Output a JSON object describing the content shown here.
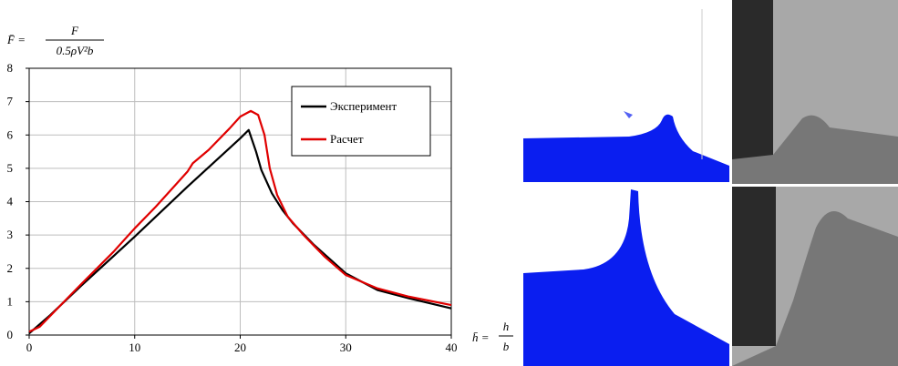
{
  "chart_data": {
    "type": "line",
    "ylabel_symbol": "F̄ =",
    "ylabel_numerator": "F",
    "ylabel_denominator": "0.5ρV²b",
    "xlabel_symbol": "h̄ =",
    "xlabel_numerator": "h",
    "xlabel_denominator": "b",
    "xlim": [
      0,
      40
    ],
    "xticks": [
      0,
      10,
      20,
      30,
      40
    ],
    "ylim": [
      0,
      8
    ],
    "yticks": [
      0,
      1,
      2,
      3,
      4,
      5,
      6,
      7,
      8
    ],
    "grid": true,
    "legend": "upper right",
    "series": [
      {
        "name": "Эксперимент",
        "color": "#000000",
        "x": [
          0,
          2,
          5,
          10,
          15,
          20,
          20.8,
          21.5,
          22,
          23,
          24,
          25,
          27,
          30,
          33,
          36,
          40
        ],
        "values": [
          0.05,
          0.6,
          1.5,
          2.95,
          4.45,
          5.9,
          6.15,
          5.5,
          4.95,
          4.25,
          3.75,
          3.35,
          2.7,
          1.85,
          1.35,
          1.1,
          0.8
        ]
      },
      {
        "name": "Расчет",
        "color": "#e00000",
        "x": [
          0,
          1,
          3,
          5,
          8,
          10,
          12,
          14,
          15,
          15.5,
          17,
          19,
          20,
          21,
          21.7,
          22.3,
          22.8,
          23.5,
          24.5,
          26,
          28,
          30,
          33,
          36,
          40
        ],
        "values": [
          0.1,
          0.25,
          0.9,
          1.55,
          2.5,
          3.2,
          3.85,
          4.55,
          4.9,
          5.15,
          5.55,
          6.2,
          6.55,
          6.72,
          6.6,
          6.0,
          5.0,
          4.2,
          3.55,
          3.0,
          2.35,
          1.8,
          1.4,
          1.15,
          0.9
        ]
      }
    ]
  }
}
